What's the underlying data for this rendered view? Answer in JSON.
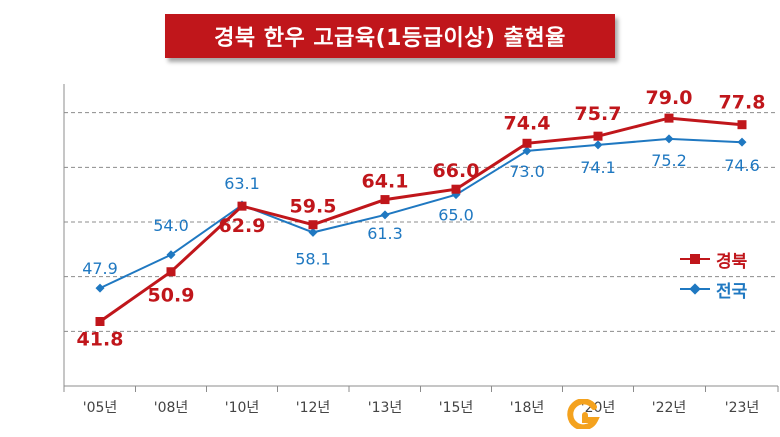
{
  "title": "경북 한우 고급육(1등급이상) 출현율",
  "chart_data": {
    "type": "line",
    "categories": [
      "'05년",
      "'08년",
      "'10년",
      "'12년",
      "'13년",
      "'15년",
      "'18년",
      "'20년",
      "'22년",
      "'23년"
    ],
    "series": [
      {
        "name": "경북",
        "color": "#c0161b",
        "marker": "square",
        "values": [
          41.8,
          50.9,
          62.9,
          59.5,
          64.1,
          66.0,
          74.4,
          75.7,
          79.0,
          77.8
        ]
      },
      {
        "name": "전국",
        "color": "#1f78c1",
        "marker": "diamond",
        "values": [
          47.9,
          54.0,
          63.1,
          58.1,
          61.3,
          65.0,
          73.0,
          74.1,
          75.2,
          74.6
        ]
      }
    ],
    "data_labels": {
      "경북": [
        "41.8",
        "50.9",
        "62.9",
        "59.5",
        "64.1",
        "66.0",
        "74.4",
        "75.7",
        "79.0",
        "77.8"
      ],
      "전국": [
        "47.9",
        "54.0",
        "63.1",
        "58.1",
        "61.3",
        "65.0",
        "73.0",
        "74.1",
        "75.2",
        "74.6"
      ]
    },
    "ylim": [
      30,
      90
    ],
    "grid": "horizontal dashed",
    "legend_position": "right"
  },
  "logo": {
    "name": "logo-icon",
    "color": "#f4a21e"
  }
}
